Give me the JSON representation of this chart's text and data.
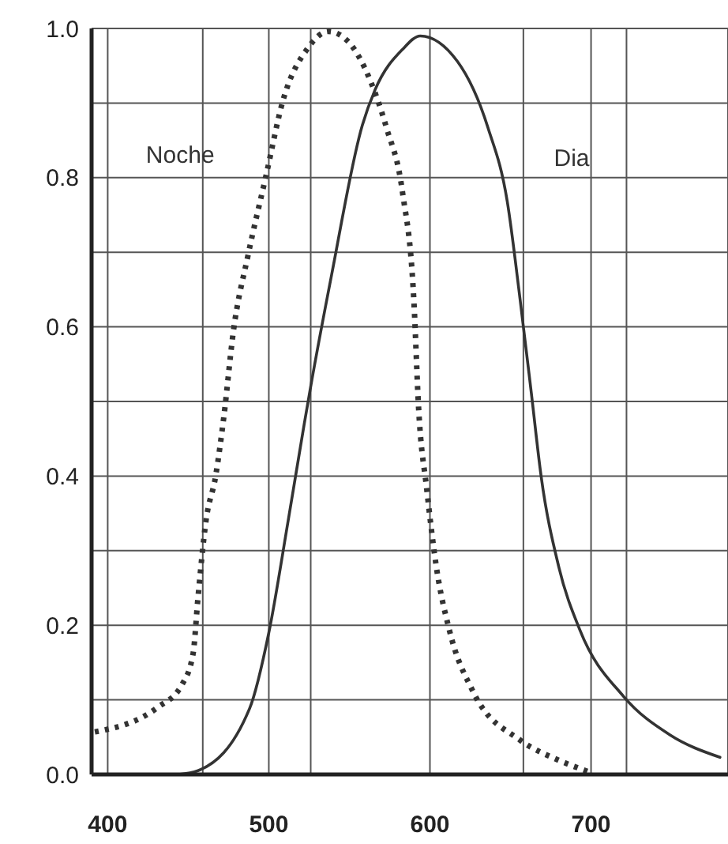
{
  "chart_data": {
    "type": "line",
    "xlim": [
      390,
      785
    ],
    "ylim": [
      0,
      1
    ],
    "xticks": [
      400,
      {
        "value": 459,
        "label": null
      },
      500,
      {
        "value": 526,
        "label": null
      },
      600,
      {
        "value": 658,
        "label": null
      },
      700,
      {
        "value": 722,
        "label": null
      }
    ],
    "yticks": [
      {
        "value": 0,
        "label": "0.0"
      },
      {
        "value": 0.1,
        "label": null
      },
      0.2,
      {
        "value": 0.3,
        "label": null
      },
      0.4,
      {
        "value": 0.5,
        "label": null
      },
      0.6,
      {
        "value": 0.7,
        "label": null
      },
      0.8,
      {
        "value": 0.9,
        "label": null
      },
      {
        "value": 1,
        "label": "1.0"
      }
    ],
    "grid": true,
    "legend": false,
    "marker": "none",
    "series": [
      {
        "name": "Noche",
        "color": "#333333",
        "line_style": "dotted",
        "x": [
          392,
          431,
          446,
          453,
          456,
          461,
          467,
          472,
          478,
          487,
          498,
          509,
          524,
          537,
          549,
          563,
          573,
          583,
          590,
          593,
          598,
          604,
          612,
          627,
          656,
          680,
          698
        ],
        "values": [
          0.057,
          0.09,
          0.12,
          0.162,
          0.236,
          0.34,
          0.4,
          0.478,
          0.594,
          0.695,
          0.8,
          0.905,
          0.973,
          0.996,
          0.983,
          0.93,
          0.867,
          0.78,
          0.636,
          0.49,
          0.383,
          0.278,
          0.194,
          0.11,
          0.046,
          0.019,
          0.004
        ]
      },
      {
        "name": "Dia",
        "color": "#333333",
        "line_style": "solid",
        "x": [
          444,
          456,
          488,
          500,
          512,
          522,
          526,
          539,
          558,
          566,
          583,
          594,
          617,
          636,
          648,
          656,
          663,
          669,
          680,
          693,
          720,
          749,
          780
        ],
        "values": [
          0,
          0.005,
          0.088,
          0.19,
          0.34,
          0.47,
          0.52,
          0.67,
          0.87,
          0.918,
          0.972,
          0.99,
          0.956,
          0.867,
          0.768,
          0.636,
          0.51,
          0.4,
          0.278,
          0.194,
          0.105,
          0.053,
          0.023
        ]
      }
    ]
  }
}
